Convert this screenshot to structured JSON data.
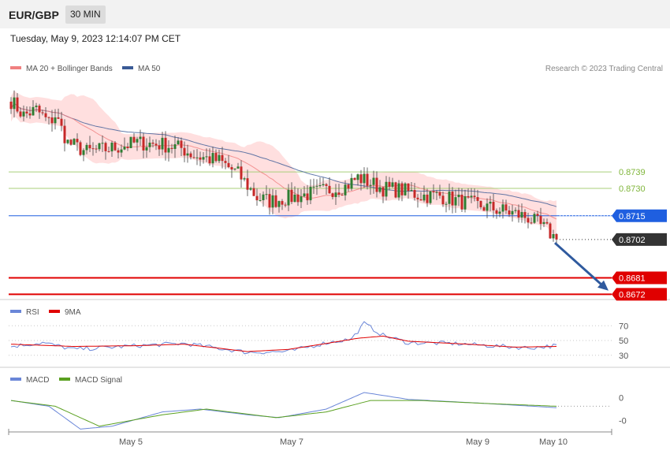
{
  "header": {
    "symbol": "EUR/GBP",
    "timeframe": "30 MIN"
  },
  "datetime": "Tuesday, May 9, 2023 12:14:07 PM CET",
  "copyright": "Research © 2023 Trading Central",
  "colors": {
    "bb_fill": "#ffd9d9",
    "ma20": "#f08080",
    "ma50": "#3a5a96",
    "candle_up": "#2e7d32",
    "candle_down": "#c62828",
    "support_green": "#7fb53a",
    "pivot_blue": "#1f5fe0",
    "resistance_red": "#e00000",
    "current_price": "#333333",
    "rsi": "#6a86d8",
    "rsi_ma": "#e00000",
    "macd": "#6a86d8",
    "macd_signal": "#5aa020",
    "arrow": "#2f5a9e"
  },
  "chart_data": [
    {
      "type": "candlestick",
      "name": "price",
      "legend": [
        {
          "label": "MA 20 + Bollinger Bands",
          "color": "#f08080"
        },
        {
          "label": "MA 50",
          "color": "#3a5a96"
        }
      ],
      "ylim": [
        0.867,
        0.879
      ],
      "x_ticks": [
        {
          "label": "May 5",
          "index": 38
        },
        {
          "label": "May 7",
          "index": 89
        },
        {
          "label": "May 9",
          "index": 148
        },
        {
          "label": "May 10",
          "index": 172
        }
      ],
      "candles_count": 174,
      "anchors": [
        {
          "i": 0,
          "c": 0.8778
        },
        {
          "i": 4,
          "c": 0.877
        },
        {
          "i": 8,
          "c": 0.8773
        },
        {
          "i": 12,
          "c": 0.8766
        },
        {
          "i": 14,
          "c": 0.877
        },
        {
          "i": 18,
          "c": 0.8755
        },
        {
          "i": 24,
          "c": 0.875
        },
        {
          "i": 32,
          "c": 0.8752
        },
        {
          "i": 40,
          "c": 0.8755
        },
        {
          "i": 48,
          "c": 0.8754
        },
        {
          "i": 54,
          "c": 0.8752
        },
        {
          "i": 58,
          "c": 0.8748
        },
        {
          "i": 66,
          "c": 0.8745
        },
        {
          "i": 72,
          "c": 0.8738
        },
        {
          "i": 78,
          "c": 0.8725
        },
        {
          "i": 82,
          "c": 0.8723
        },
        {
          "i": 92,
          "c": 0.8726
        },
        {
          "i": 100,
          "c": 0.8729
        },
        {
          "i": 106,
          "c": 0.8731
        },
        {
          "i": 110,
          "c": 0.8736
        },
        {
          "i": 114,
          "c": 0.8733
        },
        {
          "i": 118,
          "c": 0.873
        },
        {
          "i": 124,
          "c": 0.8729
        },
        {
          "i": 130,
          "c": 0.8726
        },
        {
          "i": 136,
          "c": 0.8726
        },
        {
          "i": 142,
          "c": 0.8723
        },
        {
          "i": 150,
          "c": 0.872
        },
        {
          "i": 158,
          "c": 0.8717
        },
        {
          "i": 164,
          "c": 0.8714
        },
        {
          "i": 170,
          "c": 0.8707
        },
        {
          "i": 173,
          "c": 0.8702
        }
      ],
      "levels": [
        {
          "value": 0.8739,
          "label": "0.8739",
          "type": "resistance-green"
        },
        {
          "value": 0.873,
          "label": "0.8730",
          "type": "resistance-green"
        },
        {
          "value": 0.8715,
          "label": "0.8715",
          "type": "pivot"
        },
        {
          "value": 0.8702,
          "label": "0.8702",
          "type": "current"
        },
        {
          "value": 0.8681,
          "label": "0.8681",
          "type": "support-red"
        },
        {
          "value": 0.8672,
          "label": "0.8672",
          "type": "support-red"
        }
      ],
      "forecast_arrow": {
        "from_index": 174,
        "from_value": 0.8701,
        "to_index": 190,
        "to_value": 0.8674
      }
    },
    {
      "type": "line",
      "name": "RSI",
      "legend": [
        {
          "label": "RSI",
          "color": "#6a86d8"
        },
        {
          "label": "9MA",
          "color": "#e00000"
        }
      ],
      "ylim": [
        18,
        82
      ],
      "y_ticks": [
        70,
        50,
        30
      ],
      "anchors": [
        {
          "i": 0,
          "v": 42
        },
        {
          "i": 10,
          "v": 47
        },
        {
          "i": 20,
          "v": 38
        },
        {
          "i": 40,
          "v": 43
        },
        {
          "i": 55,
          "v": 46
        },
        {
          "i": 75,
          "v": 34
        },
        {
          "i": 88,
          "v": 35
        },
        {
          "i": 100,
          "v": 47
        },
        {
          "i": 108,
          "v": 52
        },
        {
          "i": 112,
          "v": 73
        },
        {
          "i": 118,
          "v": 57
        },
        {
          "i": 126,
          "v": 47
        },
        {
          "i": 140,
          "v": 46
        },
        {
          "i": 156,
          "v": 42
        },
        {
          "i": 164,
          "v": 40
        },
        {
          "i": 173,
          "v": 43
        }
      ],
      "ma_anchors": [
        {
          "i": 0,
          "v": 45
        },
        {
          "i": 20,
          "v": 42
        },
        {
          "i": 40,
          "v": 43
        },
        {
          "i": 55,
          "v": 45
        },
        {
          "i": 75,
          "v": 35
        },
        {
          "i": 88,
          "v": 38
        },
        {
          "i": 100,
          "v": 46
        },
        {
          "i": 110,
          "v": 53
        },
        {
          "i": 118,
          "v": 56
        },
        {
          "i": 126,
          "v": 49
        },
        {
          "i": 145,
          "v": 45
        },
        {
          "i": 160,
          "v": 41
        },
        {
          "i": 173,
          "v": 42
        }
      ]
    },
    {
      "type": "line",
      "name": "MACD",
      "legend": [
        {
          "label": "MACD",
          "color": "#6a86d8"
        },
        {
          "label": "MACD Signal",
          "color": "#5aa020"
        }
      ],
      "ylim": [
        -0.0012,
        0.0004
      ],
      "y_ticks": [
        {
          "value": 0,
          "label": "0"
        },
        {
          "value": -0.0008,
          "label": "-0"
        }
      ],
      "anchors": [
        {
          "i": 0,
          "v": -0.0001
        },
        {
          "i": 12,
          "v": -0.0003
        },
        {
          "i": 22,
          "v": -0.0011
        },
        {
          "i": 32,
          "v": -0.001
        },
        {
          "i": 48,
          "v": -0.0005
        },
        {
          "i": 60,
          "v": -0.0004
        },
        {
          "i": 75,
          "v": -0.0006
        },
        {
          "i": 85,
          "v": -0.0007
        },
        {
          "i": 100,
          "v": -0.0004
        },
        {
          "i": 112,
          "v": 0.00018
        },
        {
          "i": 126,
          "v": -6e-05
        },
        {
          "i": 150,
          "v": -0.0002
        },
        {
          "i": 173,
          "v": -0.00035
        }
      ],
      "signal_anchors": [
        {
          "i": 0,
          "v": -0.0001
        },
        {
          "i": 14,
          "v": -0.0003
        },
        {
          "i": 28,
          "v": -0.001
        },
        {
          "i": 48,
          "v": -0.0006
        },
        {
          "i": 62,
          "v": -0.0004
        },
        {
          "i": 84,
          "v": -0.0007
        },
        {
          "i": 100,
          "v": -0.0005
        },
        {
          "i": 114,
          "v": -0.0001
        },
        {
          "i": 130,
          "v": -0.0001
        },
        {
          "i": 150,
          "v": -0.0002
        },
        {
          "i": 173,
          "v": -0.0003
        }
      ]
    }
  ]
}
